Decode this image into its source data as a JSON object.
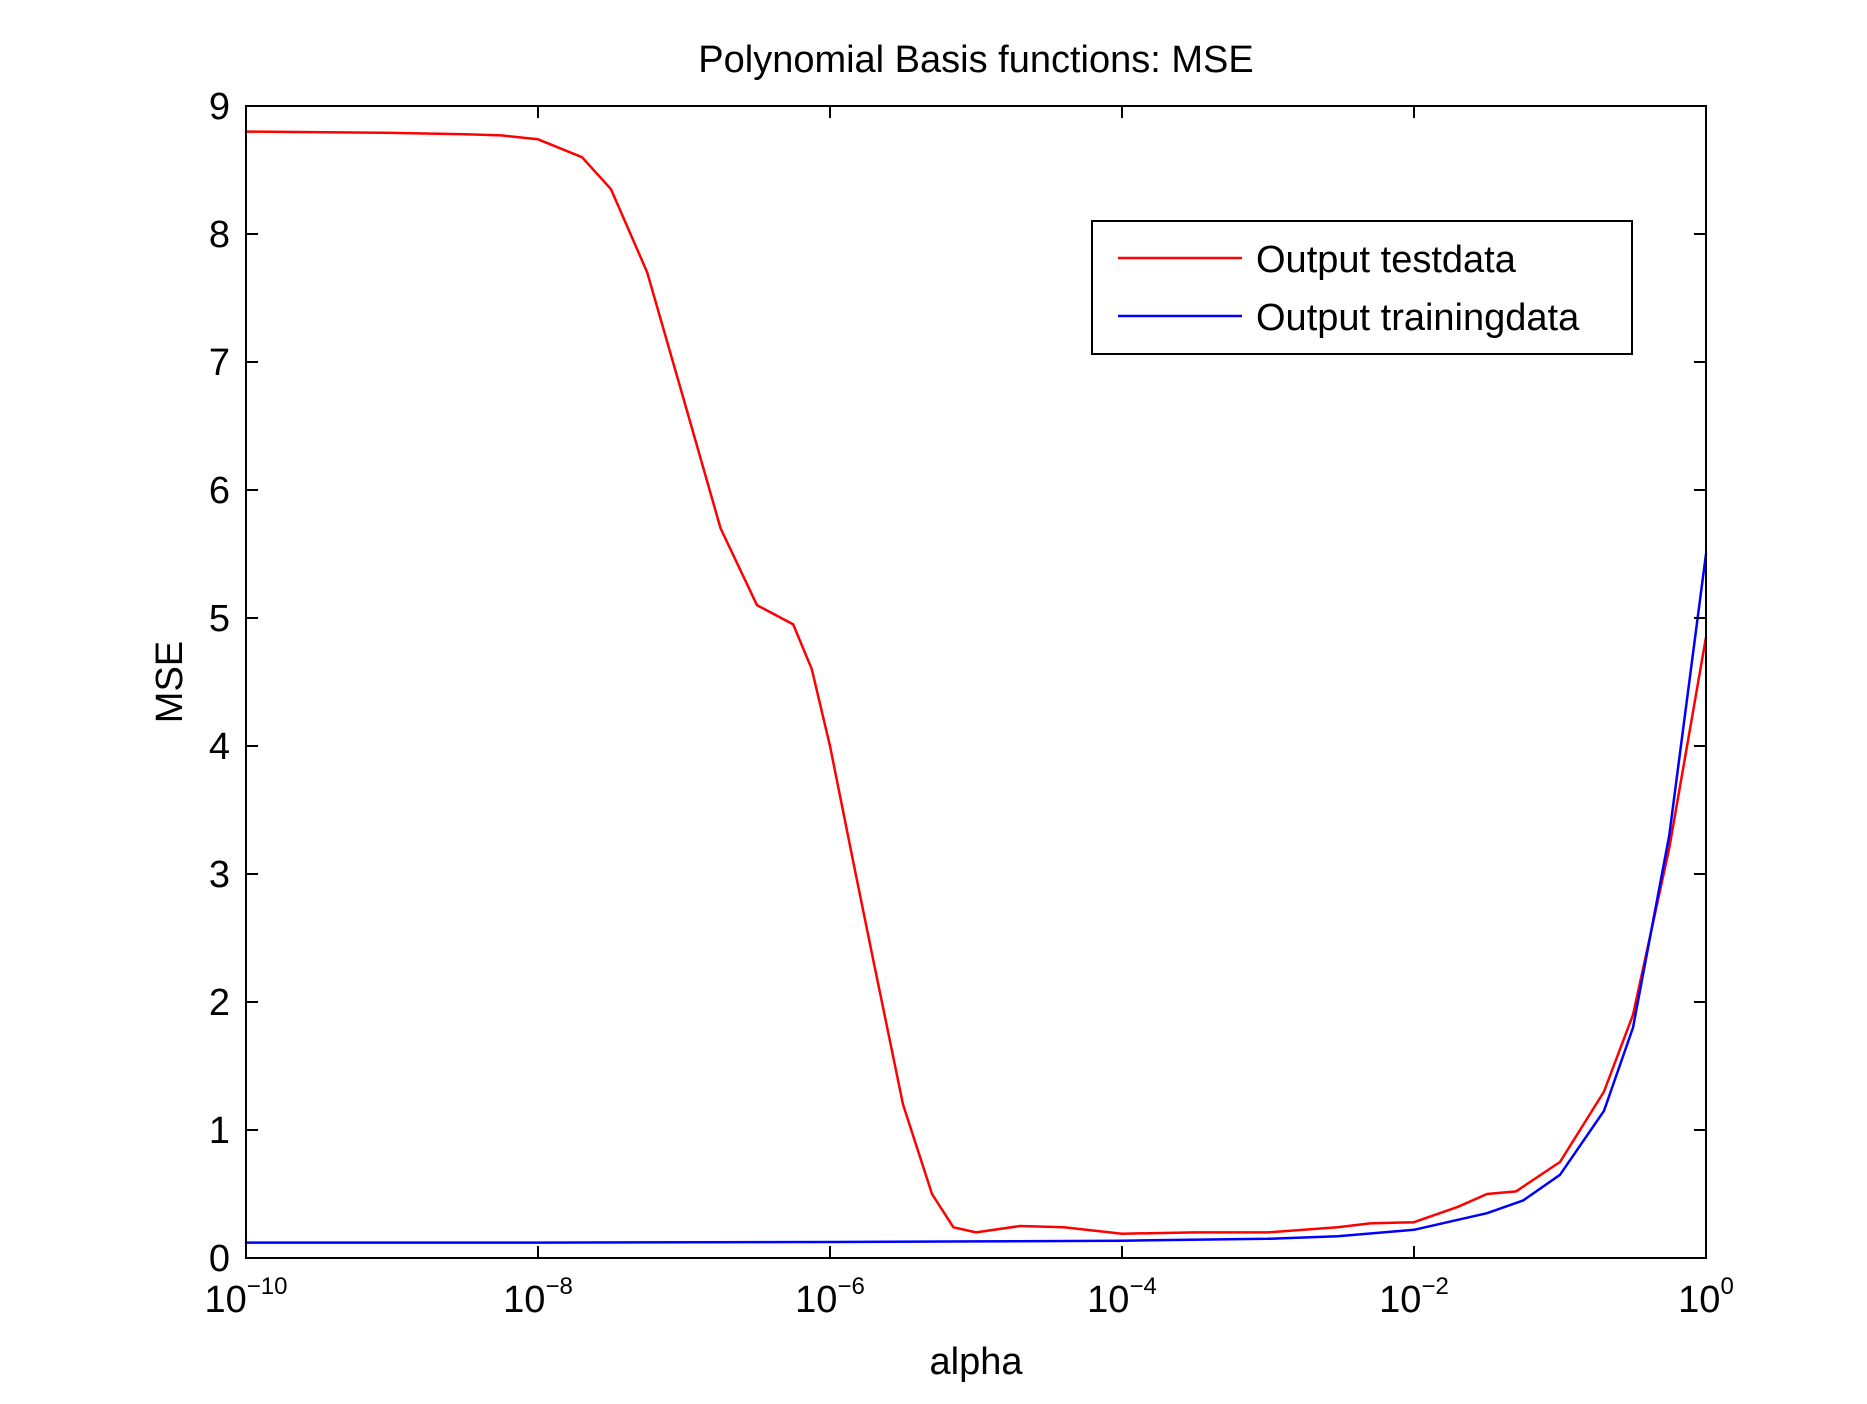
{
  "chart_data": {
    "type": "line",
    "title": "Polynomial Basis functions: MSE",
    "xlabel": "alpha",
    "ylabel": "MSE",
    "xscale": "log",
    "xlim": [
      1e-10,
      1
    ],
    "ylim": [
      0,
      9
    ],
    "grid": false,
    "legend_position": "top-right",
    "x_ticks": [
      {
        "value": 1e-10,
        "base": "10",
        "exp": "−10"
      },
      {
        "value": 1e-08,
        "base": "10",
        "exp": "−8"
      },
      {
        "value": 1e-06,
        "base": "10",
        "exp": "−6"
      },
      {
        "value": 0.0001,
        "base": "10",
        "exp": "−4"
      },
      {
        "value": 0.01,
        "base": "10",
        "exp": "−2"
      },
      {
        "value": 1,
        "base": "10",
        "exp": "0"
      }
    ],
    "y_ticks": [
      "0",
      "1",
      "2",
      "3",
      "4",
      "5",
      "6",
      "7",
      "8",
      "9"
    ],
    "series": [
      {
        "name": "Output testdata",
        "color": "#ff0000",
        "points": [
          [
            1e-10,
            8.8
          ],
          [
            1e-09,
            8.79
          ],
          [
            3.16e-09,
            8.78
          ],
          [
            5.6e-09,
            8.77
          ],
          [
            1e-08,
            8.74
          ],
          [
            2e-08,
            8.6
          ],
          [
            3.16e-08,
            8.35
          ],
          [
            5.6e-08,
            7.7
          ],
          [
            1e-07,
            6.7
          ],
          [
            1.78e-07,
            5.7
          ],
          [
            3.16e-07,
            5.1
          ],
          [
            5.6e-07,
            4.95
          ],
          [
            7.5e-07,
            4.6
          ],
          [
            1e-06,
            4.0
          ],
          [
            1.5e-06,
            3.0
          ],
          [
            2e-06,
            2.3
          ],
          [
            3.16e-06,
            1.2
          ],
          [
            5e-06,
            0.5
          ],
          [
            7e-06,
            0.24
          ],
          [
            1e-05,
            0.2
          ],
          [
            2e-05,
            0.25
          ],
          [
            4e-05,
            0.24
          ],
          [
            0.0001,
            0.19
          ],
          [
            0.000316,
            0.2
          ],
          [
            0.001,
            0.2
          ],
          [
            0.003,
            0.24
          ],
          [
            0.005,
            0.27
          ],
          [
            0.01,
            0.28
          ],
          [
            0.02,
            0.4
          ],
          [
            0.0316,
            0.5
          ],
          [
            0.05,
            0.52
          ],
          [
            0.1,
            0.75
          ],
          [
            0.2,
            1.3
          ],
          [
            0.316,
            1.9
          ],
          [
            0.56,
            3.2
          ],
          [
            1,
            4.85
          ]
        ]
      },
      {
        "name": "Output trainingdata",
        "color": "#0000ff",
        "points": [
          [
            1e-10,
            0.12
          ],
          [
            1e-08,
            0.12
          ],
          [
            1e-06,
            0.125
          ],
          [
            1e-05,
            0.13
          ],
          [
            0.0001,
            0.135
          ],
          [
            0.001,
            0.15
          ],
          [
            0.003,
            0.17
          ],
          [
            0.01,
            0.22
          ],
          [
            0.0316,
            0.35
          ],
          [
            0.056,
            0.45
          ],
          [
            0.1,
            0.65
          ],
          [
            0.2,
            1.15
          ],
          [
            0.316,
            1.8
          ],
          [
            0.56,
            3.3
          ],
          [
            1,
            5.5
          ]
        ]
      }
    ]
  }
}
